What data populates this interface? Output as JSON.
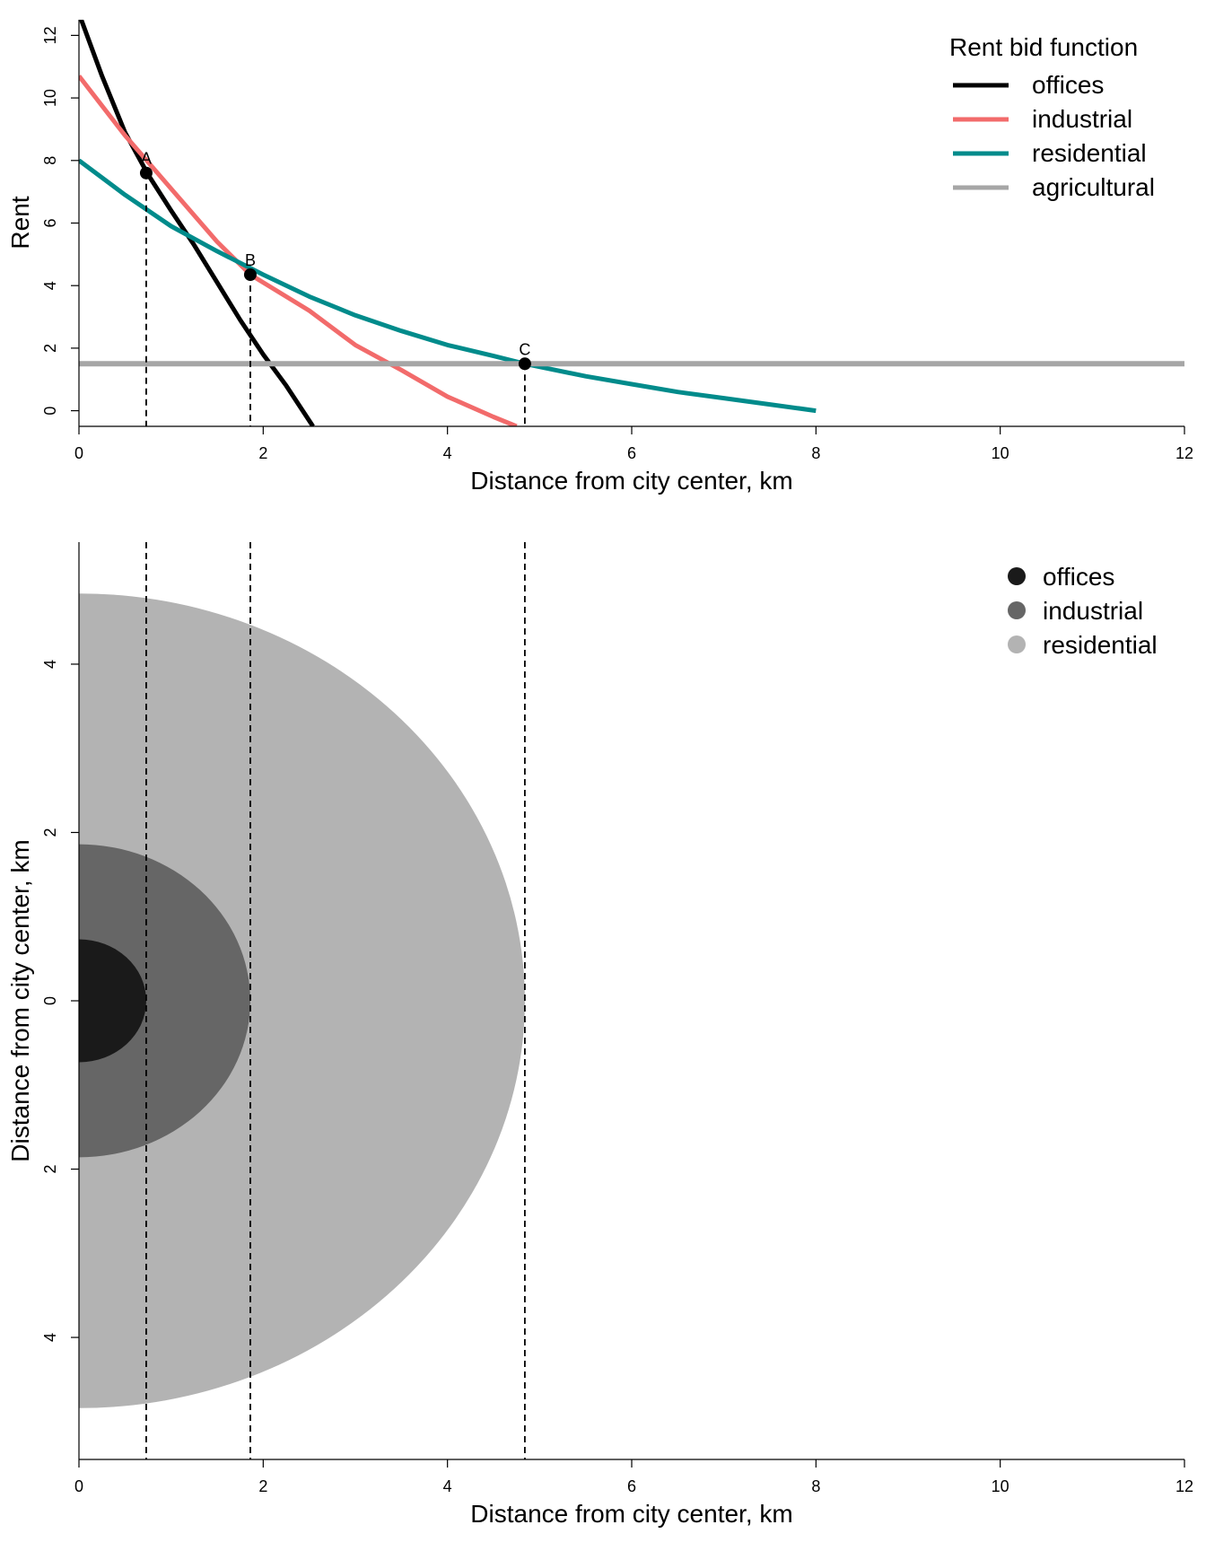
{
  "chart_data": [
    {
      "type": "line",
      "title": "",
      "xlabel": "Distance from city center, km",
      "ylabel": "Rent",
      "xlim": [
        0,
        12
      ],
      "ylim": [
        -0.5,
        12.5
      ],
      "xticks": [
        0,
        2,
        4,
        6,
        8,
        10,
        12
      ],
      "yticks": [
        0,
        2,
        4,
        6,
        8,
        10,
        12
      ],
      "grid": false,
      "legend_title": "Rent bid function",
      "legend_position": "top-right",
      "series": [
        {
          "name": "offices",
          "color": "#000000",
          "x": [
            0,
            0.25,
            0.5,
            0.75,
            1.0,
            1.25,
            1.5,
            1.75,
            2.0,
            2.25,
            2.54
          ],
          "y": [
            12.7,
            10.7,
            8.9,
            7.55,
            6.4,
            5.3,
            4.1,
            2.9,
            1.8,
            0.8,
            -0.5
          ]
        },
        {
          "name": "industrial",
          "color": "#f26b6b",
          "x": [
            0,
            0.5,
            1.0,
            1.5,
            1.86,
            2.5,
            3.0,
            3.5,
            4.0,
            4.5,
            4.75
          ],
          "y": [
            10.7,
            8.8,
            7.1,
            5.4,
            4.35,
            3.2,
            2.1,
            1.3,
            0.45,
            -0.2,
            -0.5
          ]
        },
        {
          "name": "residential",
          "color": "#008b8b",
          "x": [
            0,
            0.5,
            1.0,
            1.5,
            2.0,
            2.5,
            3.0,
            3.5,
            4.0,
            4.5,
            4.84,
            5.5,
            6.0,
            6.5,
            7.0,
            7.5,
            8.0
          ],
          "y": [
            8.0,
            6.9,
            5.9,
            5.1,
            4.35,
            3.65,
            3.05,
            2.55,
            2.1,
            1.75,
            1.5,
            1.1,
            0.85,
            0.6,
            0.4,
            0.2,
            0.0
          ]
        },
        {
          "name": "agricultural",
          "color": "#a6a6a6",
          "x": [
            0,
            12
          ],
          "y": [
            1.5,
            1.5
          ]
        }
      ],
      "points": [
        {
          "label": "A",
          "x": 0.73,
          "y": 7.6
        },
        {
          "label": "B",
          "x": 1.86,
          "y": 4.35
        },
        {
          "label": "C",
          "x": 4.84,
          "y": 1.5
        }
      ],
      "vlines": [
        0.73,
        1.86,
        4.84
      ]
    },
    {
      "type": "area",
      "title": "",
      "xlabel": "Distance from city center, km",
      "ylabel": "Distance from city center, km",
      "xlim": [
        0,
        12
      ],
      "ylim": [
        -4.9,
        4.9
      ],
      "xticks": [
        0,
        2,
        4,
        6,
        8,
        10,
        12
      ],
      "yticks": [
        4,
        2,
        0,
        2,
        4
      ],
      "grid": false,
      "legend_position": "top-right",
      "zones": [
        {
          "name": "residential",
          "color": "#b3b3b3",
          "radius": 4.84
        },
        {
          "name": "industrial",
          "color": "#666666",
          "radius": 1.86
        },
        {
          "name": "offices",
          "color": "#1a1a1a",
          "radius": 0.73
        }
      ],
      "legend": [
        {
          "name": "offices",
          "color": "#1a1a1a"
        },
        {
          "name": "industrial",
          "color": "#666666"
        },
        {
          "name": "residential",
          "color": "#b3b3b3"
        }
      ],
      "vlines": [
        0.73,
        1.86,
        4.84
      ]
    }
  ]
}
